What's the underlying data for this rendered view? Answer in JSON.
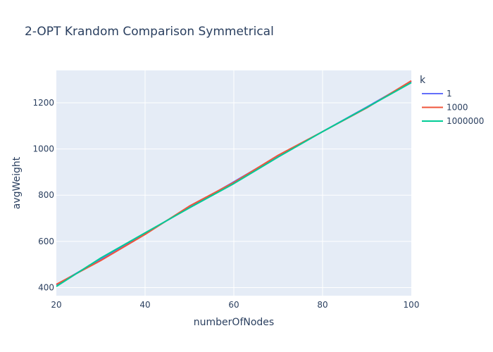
{
  "chart_data": {
    "type": "line",
    "title": "2-OPT Krandom Comparison Symmetrical",
    "xlabel": "numberOfNodes",
    "ylabel": "avgWeight",
    "xlim": [
      20,
      100
    ],
    "ylim": [
      365,
      1340
    ],
    "x_ticks": [
      20,
      40,
      60,
      80,
      100
    ],
    "y_ticks": [
      400,
      600,
      800,
      1000,
      1200
    ],
    "grid": true,
    "legend": {
      "title": "k",
      "position": "right"
    },
    "x": [
      20,
      30,
      40,
      50,
      60,
      70,
      80,
      90,
      100
    ],
    "series": [
      {
        "name": "1",
        "color": "#636efa",
        "values": [
          412,
          523,
          635,
          747,
          858,
          970,
          1075,
          1182,
          1292
        ]
      },
      {
        "name": "1000",
        "color": "#ef553b",
        "values": [
          414,
          517,
          630,
          753,
          855,
          973,
          1075,
          1178,
          1295
        ]
      },
      {
        "name": "1000000",
        "color": "#00cc96",
        "values": [
          405,
          528,
          637,
          745,
          850,
          965,
          1075,
          1180,
          1287
        ]
      }
    ],
    "plot_background": "#e5ecf6",
    "grid_color": "#ffffff",
    "text_color": "#2a3f5f"
  }
}
